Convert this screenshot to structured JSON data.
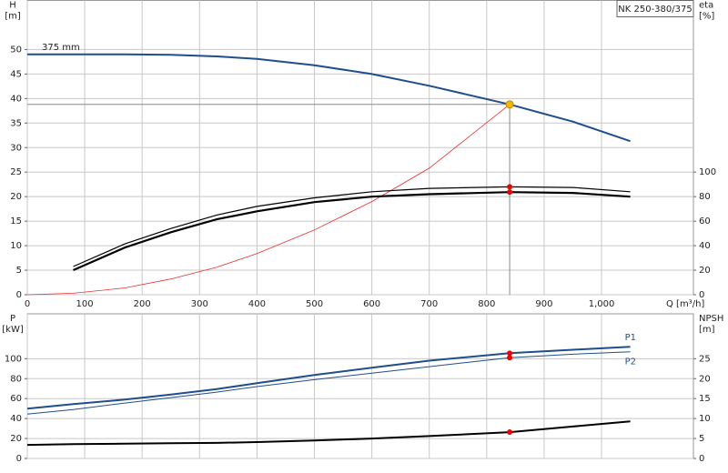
{
  "chart_data": [
    {
      "type": "line",
      "title": "NK 250-380/375",
      "y_label": "H",
      "y_unit": "[m]",
      "y2_label": "eta",
      "y2_unit": "[%]",
      "x_label": "Q [m³/h]",
      "x": [
        0,
        80,
        170,
        250,
        330,
        400,
        500,
        600,
        700,
        840,
        950,
        1050
      ],
      "xlim": [
        0,
        1160
      ],
      "xticks": [
        0,
        100,
        200,
        300,
        400,
        500,
        600,
        700,
        800,
        900,
        {
          "value": 1000,
          "label": "1,000"
        }
      ],
      "ylim": [
        0,
        60
      ],
      "yticks": [
        0,
        5,
        10,
        15,
        20,
        25,
        30,
        35,
        40,
        45,
        50
      ],
      "y2lim": [
        0,
        240
      ],
      "y2ticks": [
        0,
        20,
        40,
        60,
        80,
        100
      ],
      "grid": true,
      "operating_point": {
        "x": 840,
        "y": 38.8,
        "color": "#f5b800"
      },
      "series": [
        {
          "name": "375 mm",
          "color": "#1f4e8c",
          "line_width": 2,
          "values": [
            49,
            49,
            49,
            48.9,
            48.6,
            48.1,
            46.8,
            45,
            42.6,
            38.8,
            35.3,
            31.3
          ]
        },
        {
          "color": "#e83030",
          "line_width": 0.8,
          "values": [
            0,
            0.3,
            1.4,
            3.2,
            5.6,
            8.4,
            13.2,
            19,
            25.8,
            38.8,
            null,
            null
          ]
        },
        {
          "color": "#000000",
          "line_width": 2.2,
          "axis": "y2",
          "marker": true,
          "values": [
            null,
            20,
            38.5,
            51,
            61.5,
            68,
            75.5,
            80,
            82,
            83.7,
            83,
            80
          ]
        },
        {
          "color": "#000000",
          "line_width": 1.2,
          "axis": "y2",
          "marker": true,
          "values": [
            null,
            23,
            41.5,
            54,
            65,
            72,
            79,
            84,
            86.7,
            88,
            87.5,
            84
          ]
        }
      ]
    },
    {
      "type": "line",
      "y_label": "P",
      "y_unit": "[kW]",
      "y2_label": "NPSH",
      "y2_unit": "[m]",
      "x": [
        0,
        80,
        170,
        250,
        330,
        400,
        500,
        600,
        700,
        840,
        950,
        1050
      ],
      "xlim": [
        0,
        1160
      ],
      "xticks": [
        0,
        100,
        200,
        300,
        400,
        500,
        600,
        700,
        800,
        900,
        1000
      ],
      "ylim": [
        0,
        145
      ],
      "yticks": [
        0,
        20,
        40,
        60,
        80,
        100
      ],
      "y2lim": [
        0,
        36.25
      ],
      "y2ticks": [
        0,
        5,
        10,
        15,
        20,
        25
      ],
      "grid": true,
      "series": [
        {
          "name": "P1",
          "color": "#1f4e8c",
          "line_width": 2,
          "marker": true,
          "values": [
            50,
            54.5,
            59,
            64,
            69.5,
            75.5,
            83.6,
            91,
            98,
            105.5,
            109,
            112
          ]
        },
        {
          "name": "P2",
          "color": "#1f4e8c",
          "line_width": 1,
          "marker": true,
          "values": [
            44.5,
            49,
            55.5,
            61,
            66.5,
            72,
            79,
            85.5,
            92,
            101,
            104.5,
            107
          ]
        },
        {
          "color": "#000000",
          "line_width": 2,
          "axis": "y2",
          "marker": true,
          "values": [
            3.4,
            3.6,
            3.7,
            3.8,
            3.9,
            4.1,
            4.5,
            5,
            5.6,
            6.6,
            8,
            9.3
          ]
        }
      ]
    }
  ]
}
